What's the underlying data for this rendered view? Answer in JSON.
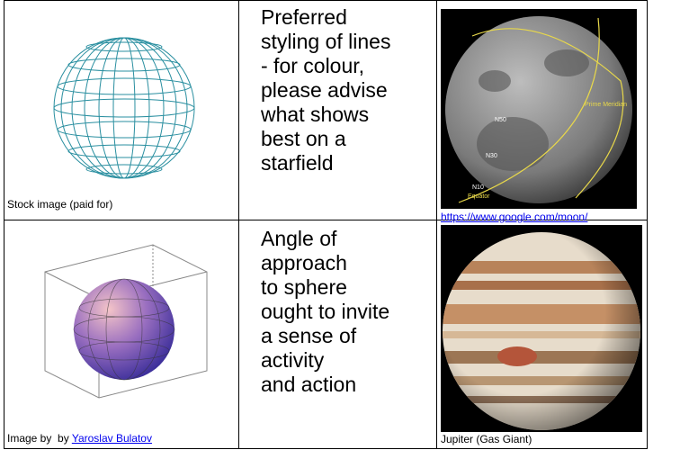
{
  "table": {
    "rows": [
      [
        {
          "caption": "Stock image (paid for)"
        },
        {
          "text_lines": [
            "Preferred",
            "styling of lines",
            "- for colour,",
            "please advise",
            "what shows",
            "best on a",
            "starfield"
          ]
        },
        {
          "labels": [
            "N50",
            "N30",
            "N10",
            "Equator",
            "Prime Meridian"
          ],
          "link": "https://www.google.com/moon/"
        }
      ],
      [
        {
          "caption": "Image by  by ",
          "link": "Yaroslav Bulatov"
        },
        {
          "text_lines": [
            "Angle of",
            "approach",
            "to sphere",
            "ought to invite",
            "a sense of",
            "activity",
            "and action"
          ]
        },
        {
          "caption": "Jupiter (Gas Giant)"
        }
      ]
    ]
  }
}
